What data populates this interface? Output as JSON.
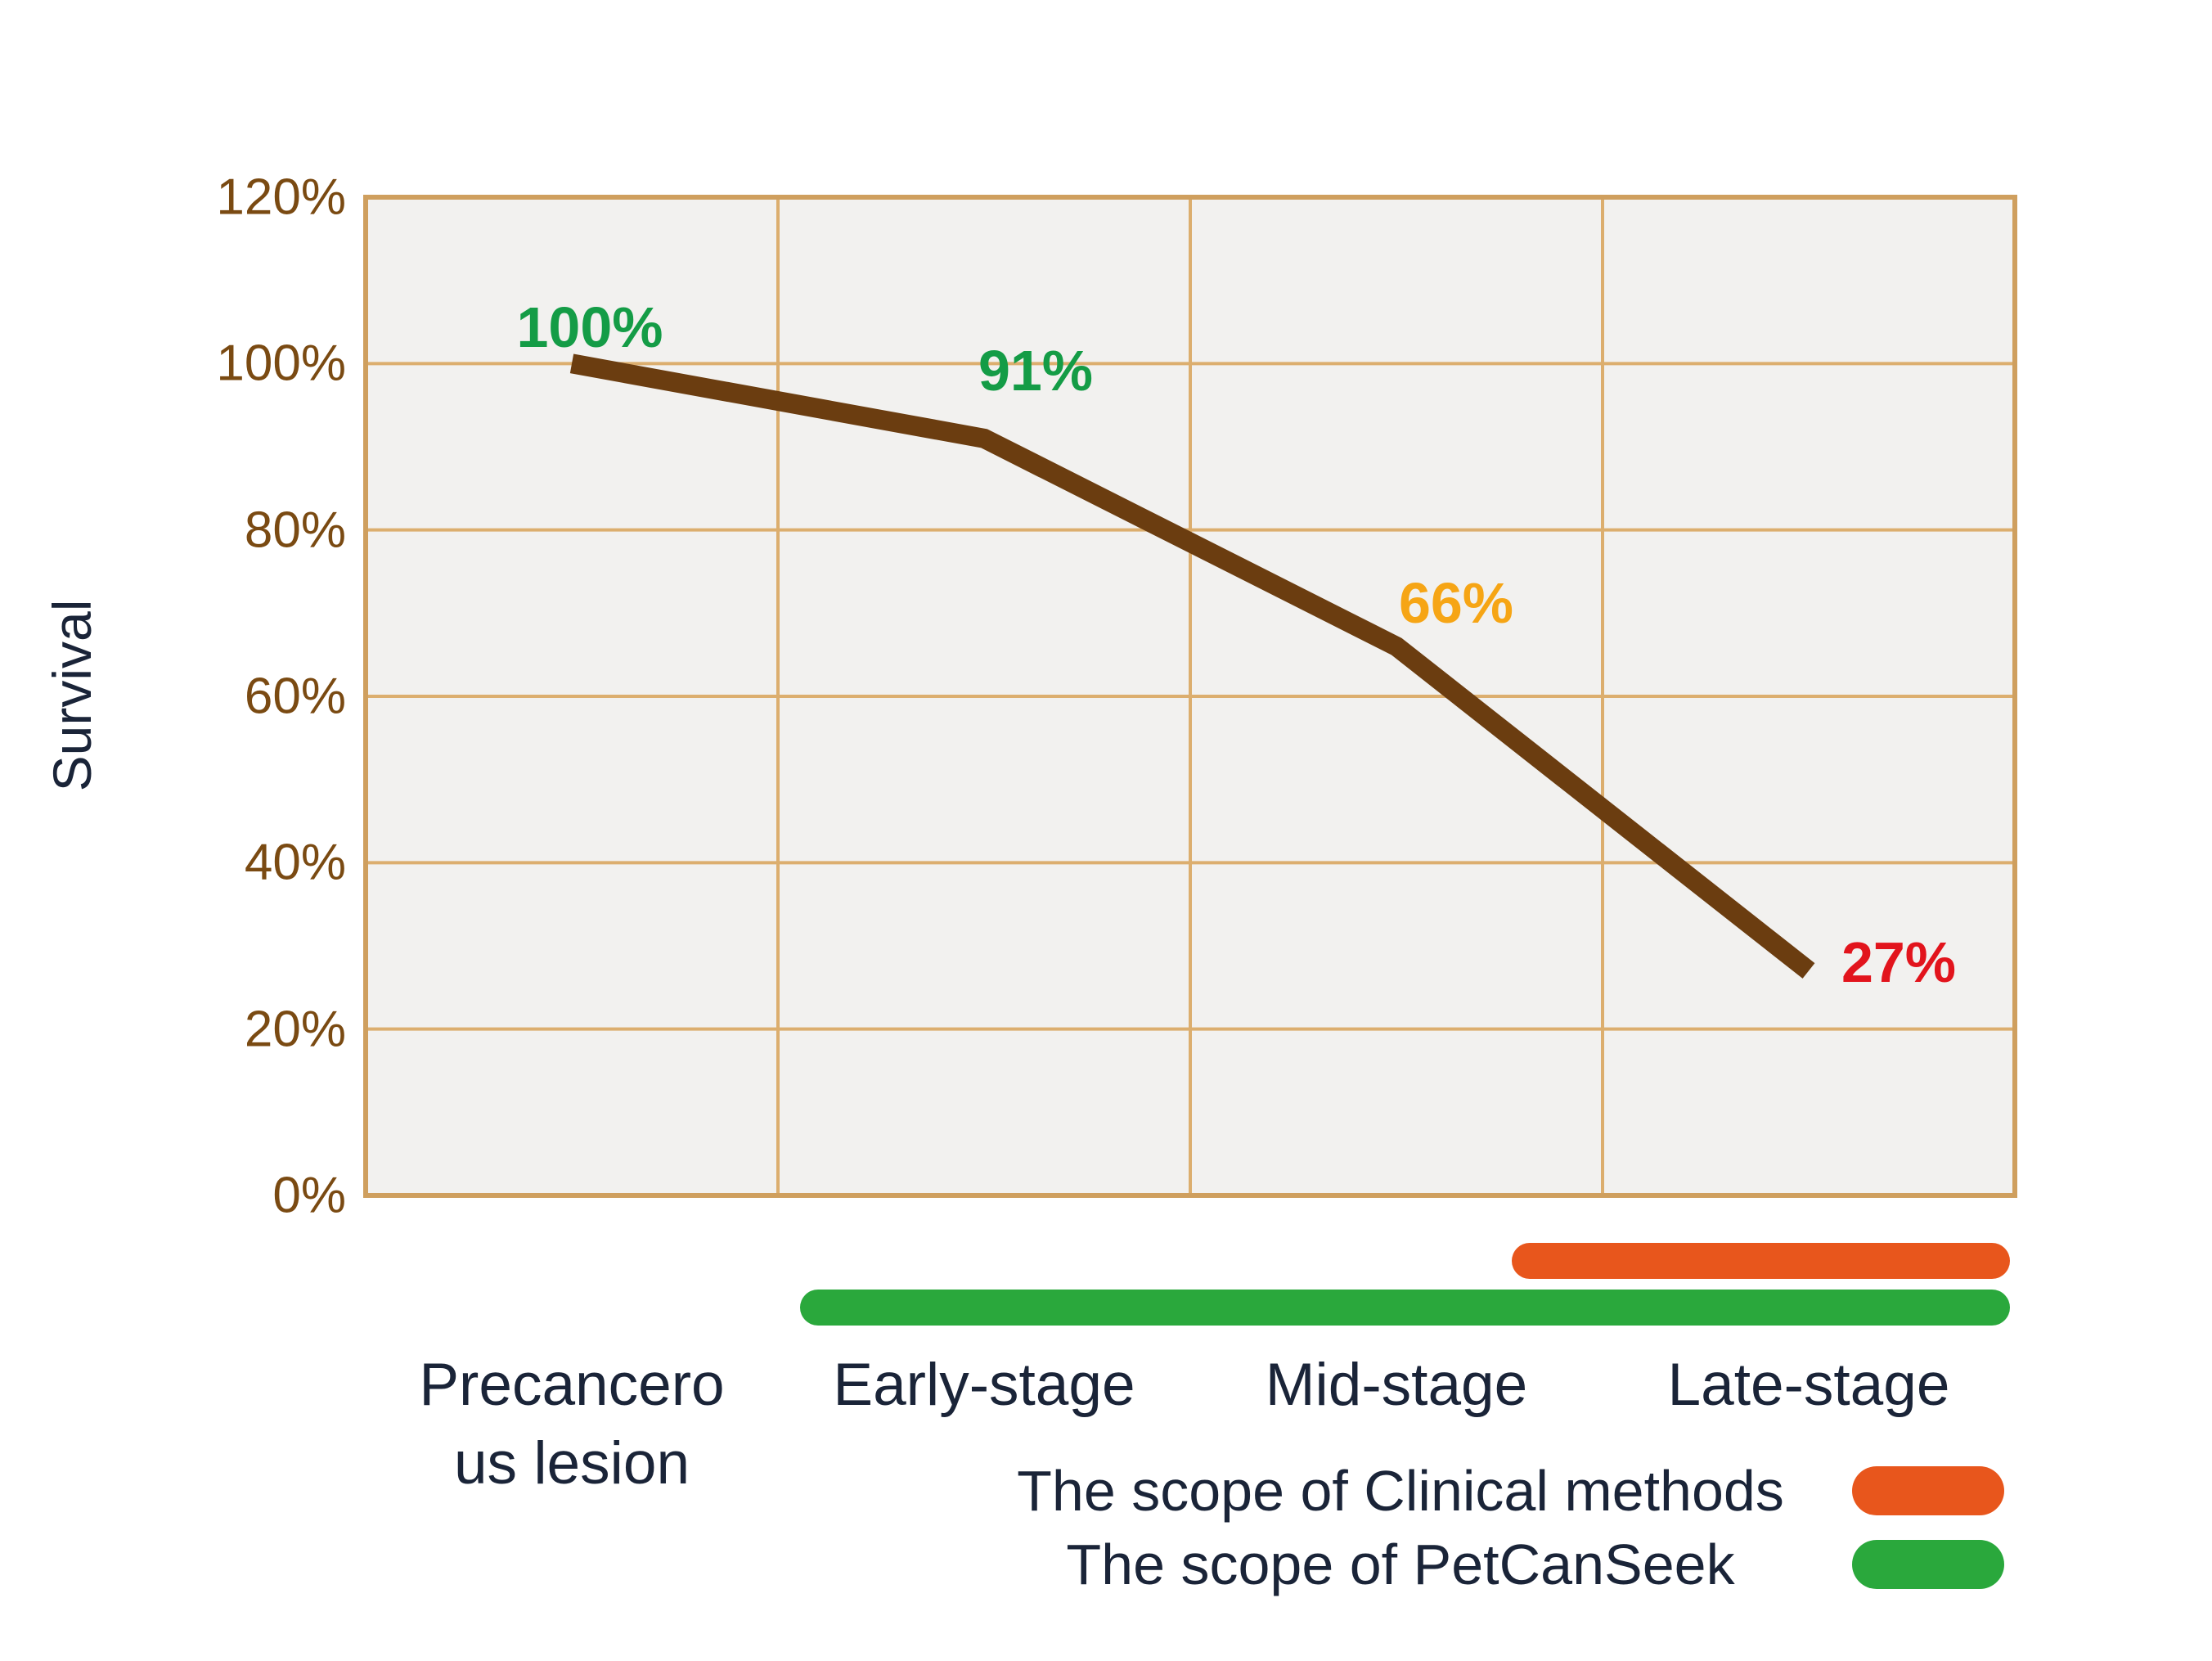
{
  "page": {
    "background": "#ffffff"
  },
  "chart_data": {
    "type": "line",
    "title": "",
    "y_axis_title": "Survival",
    "categories": [
      "Precancerous lesion",
      "Early-stage",
      "Mid-stage",
      "Late-stage"
    ],
    "categories_display": [
      "Precancero\nus lesion",
      "Early-stage",
      "Mid-stage",
      "Late-stage"
    ],
    "series": [
      {
        "name": "Survival",
        "values": [
          100,
          91,
          66,
          27
        ],
        "color": "#6b3d10"
      }
    ],
    "point_labels": [
      "100%",
      "91%",
      "66%",
      "27%"
    ],
    "point_label_colors": [
      "#149c46",
      "#149c46",
      "#f6a515",
      "#e2141c"
    ],
    "y_ticks": {
      "labels": [
        "120%",
        "100%",
        "80%",
        "60%",
        "40%",
        "20%",
        "0%"
      ],
      "values": [
        120,
        100,
        80,
        60,
        40,
        20,
        0
      ]
    },
    "ylim": [
      0,
      120
    ],
    "grid": true,
    "legend_position": "bottom-right",
    "plot_background": "#f2f1ef",
    "grid_color": "#dcae6e",
    "border_color": "#cf9f5e",
    "axis_text_color": "#7a4a12",
    "category_text_color": "#1a2438"
  },
  "scope_bars": [
    {
      "label": "The scope of Clinical methods",
      "color": "#e8561c",
      "covers": [
        "Late-stage"
      ]
    },
    {
      "label": "The scope of PetCanSeek",
      "color": "#2aa83c",
      "covers": [
        "Early-stage",
        "Mid-stage",
        "Late-stage"
      ]
    }
  ]
}
